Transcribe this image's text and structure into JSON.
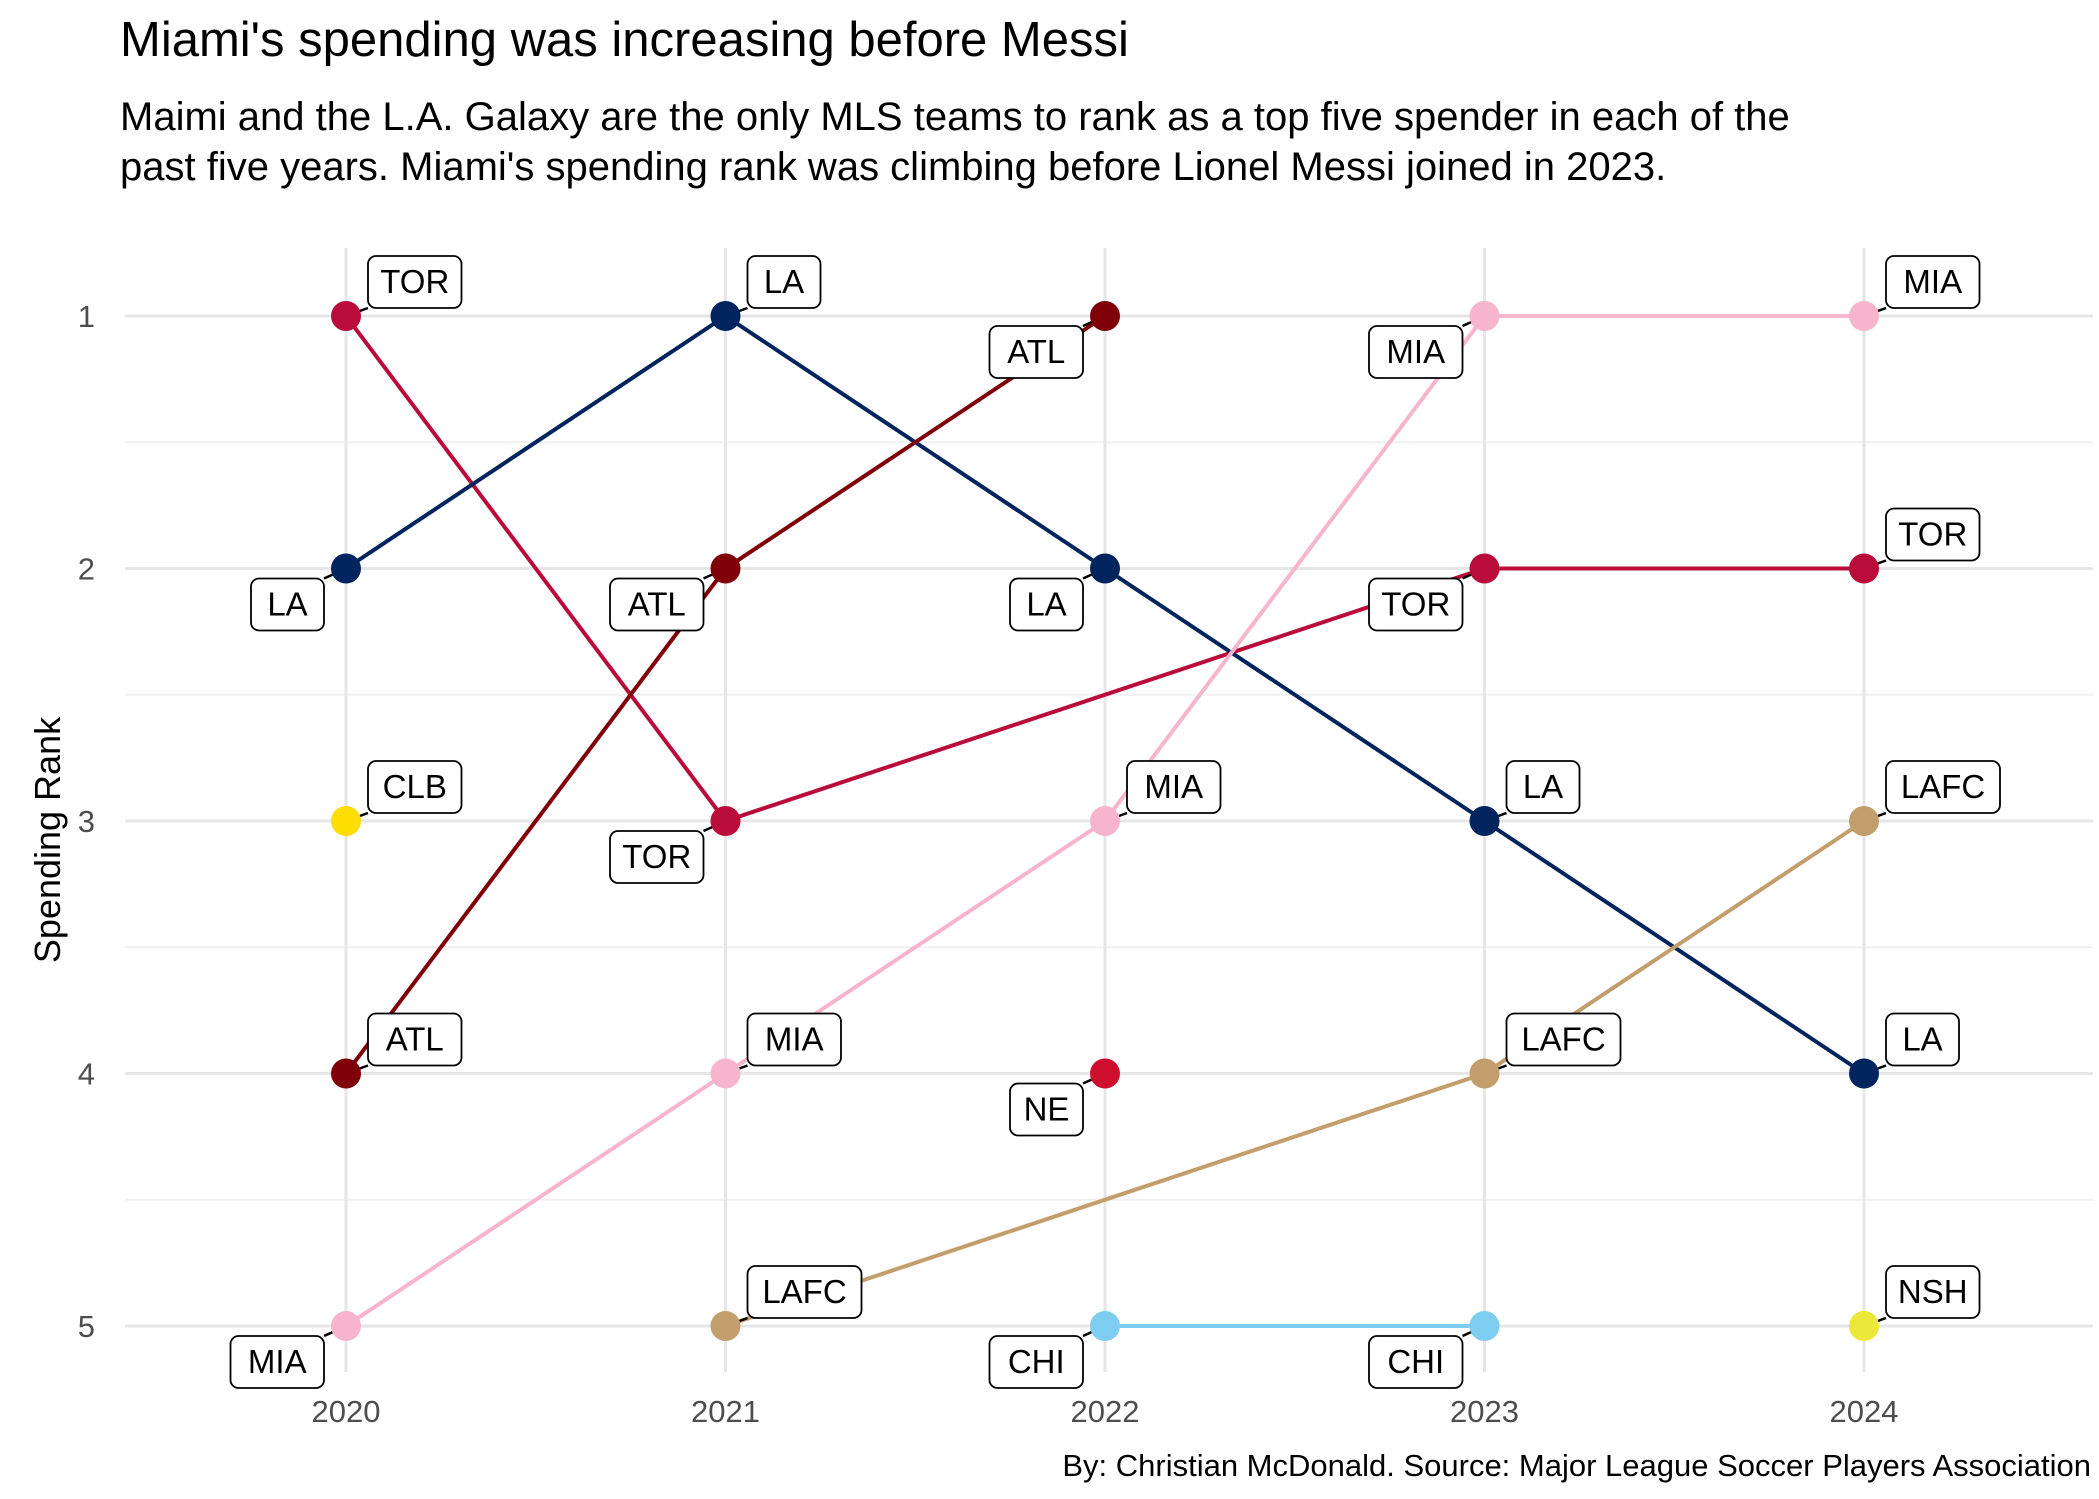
{
  "title": "Miami's spending was increasing before Messi",
  "subtitle": "Maimi and the L.A. Galaxy are the only MLS teams to rank as a top five spender in each of the past five years. Miami's spending rank was climbing before Lionel Messi joined in 2023.",
  "caption": "By: Christian McDonald. Source: Major League Soccer Players Association",
  "chart_data": {
    "type": "line",
    "title": "Miami's spending was increasing before Messi",
    "xlabel": "",
    "ylabel": "Spending Rank",
    "x": [
      2020,
      2021,
      2022,
      2023,
      2024
    ],
    "x_tick_labels": [
      "2020",
      "2021",
      "2022",
      "2023",
      "2024"
    ],
    "y_tick_labels": [
      "1",
      "2",
      "3",
      "4",
      "5"
    ],
    "ylim": [
      1,
      5
    ],
    "y_reversed": true,
    "grid": true,
    "series": [
      {
        "label": "TOR",
        "color": "#BA0C3A",
        "points": [
          [
            2020,
            1
          ],
          [
            2021,
            3
          ],
          [
            2023,
            2
          ],
          [
            2024,
            2
          ]
        ]
      },
      {
        "label": "LA",
        "color": "#00245D",
        "points": [
          [
            2020,
            2
          ],
          [
            2021,
            1
          ],
          [
            2022,
            2
          ],
          [
            2023,
            3
          ],
          [
            2024,
            4
          ]
        ]
      },
      {
        "label": "ATL",
        "color": "#80000A",
        "points": [
          [
            2020,
            4
          ],
          [
            2021,
            2
          ],
          [
            2022,
            1
          ]
        ]
      },
      {
        "label": "MIA",
        "color": "#F7B5CD",
        "points": [
          [
            2020,
            5
          ],
          [
            2021,
            4
          ],
          [
            2022,
            3
          ],
          [
            2023,
            1
          ],
          [
            2024,
            1
          ]
        ]
      },
      {
        "label": "LAFC",
        "color": "#C39E6D",
        "points": [
          [
            2021,
            5
          ],
          [
            2023,
            4
          ],
          [
            2024,
            3
          ]
        ]
      },
      {
        "label": "CHI",
        "color": "#7CCDEF",
        "points": [
          [
            2022,
            5
          ],
          [
            2023,
            5
          ]
        ]
      },
      {
        "label": "CLB",
        "color": "#FEDD00",
        "points": [
          [
            2020,
            3
          ]
        ]
      },
      {
        "label": "NE",
        "color": "#CE0E2D",
        "points": [
          [
            2022,
            4
          ]
        ]
      },
      {
        "label": "NSH",
        "color": "#ECE83A",
        "points": [
          [
            2024,
            5
          ]
        ]
      }
    ]
  },
  "point_labels": [
    {
      "text": "TOR",
      "year": 2020,
      "rank": 1,
      "side": "above"
    },
    {
      "text": "LA",
      "year": 2020,
      "rank": 2,
      "side": "below"
    },
    {
      "text": "CLB",
      "year": 2020,
      "rank": 3,
      "side": "above"
    },
    {
      "text": "ATL",
      "year": 2020,
      "rank": 4,
      "side": "above"
    },
    {
      "text": "MIA",
      "year": 2020,
      "rank": 5,
      "side": "below"
    },
    {
      "text": "LA",
      "year": 2021,
      "rank": 1,
      "side": "above"
    },
    {
      "text": "ATL",
      "year": 2021,
      "rank": 2,
      "side": "below"
    },
    {
      "text": "TOR",
      "year": 2021,
      "rank": 3,
      "side": "below"
    },
    {
      "text": "MIA",
      "year": 2021,
      "rank": 4,
      "side": "above"
    },
    {
      "text": "LAFC",
      "year": 2021,
      "rank": 5,
      "side": "above"
    },
    {
      "text": "ATL",
      "year": 2022,
      "rank": 1,
      "side": "below"
    },
    {
      "text": "LA",
      "year": 2022,
      "rank": 2,
      "side": "below"
    },
    {
      "text": "MIA",
      "year": 2022,
      "rank": 3,
      "side": "above"
    },
    {
      "text": "NE",
      "year": 2022,
      "rank": 4,
      "side": "below"
    },
    {
      "text": "CHI",
      "year": 2022,
      "rank": 5,
      "side": "below"
    },
    {
      "text": "MIA",
      "year": 2023,
      "rank": 1,
      "side": "below"
    },
    {
      "text": "TOR",
      "year": 2023,
      "rank": 2,
      "side": "below"
    },
    {
      "text": "LA",
      "year": 2023,
      "rank": 3,
      "side": "above"
    },
    {
      "text": "LAFC",
      "year": 2023,
      "rank": 4,
      "side": "above"
    },
    {
      "text": "CHI",
      "year": 2023,
      "rank": 5,
      "side": "below"
    },
    {
      "text": "MIA",
      "year": 2024,
      "rank": 1,
      "side": "above"
    },
    {
      "text": "TOR",
      "year": 2024,
      "rank": 2,
      "side": "above"
    },
    {
      "text": "LAFC",
      "year": 2024,
      "rank": 3,
      "side": "above"
    },
    {
      "text": "LA",
      "year": 2024,
      "rank": 4,
      "side": "above"
    },
    {
      "text": "NSH",
      "year": 2024,
      "rank": 5,
      "side": "above"
    }
  ]
}
